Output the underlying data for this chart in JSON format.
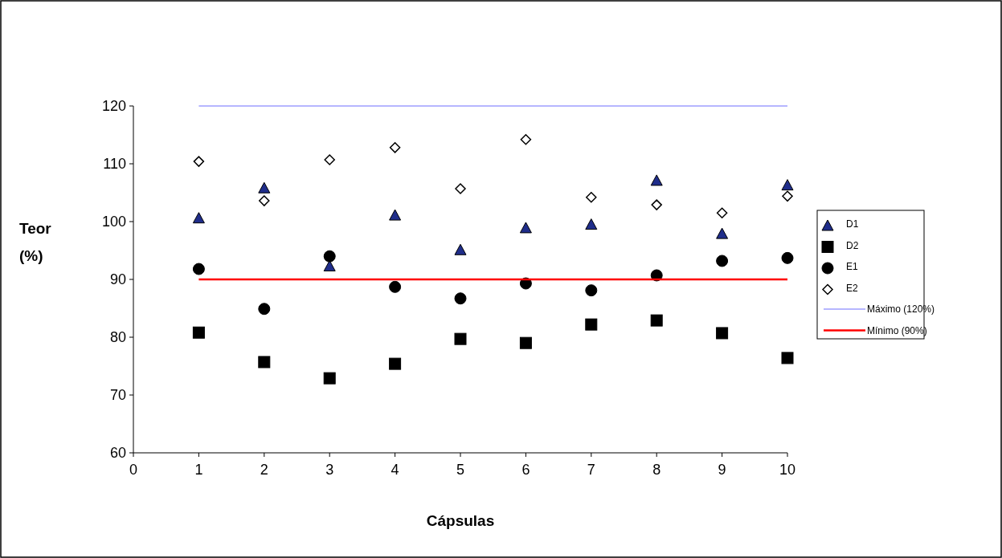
{
  "chart_data": {
    "type": "scatter",
    "xlabel": "Cápsulas",
    "ylabel": "Teor (%)",
    "xlim": [
      0,
      10
    ],
    "xticks": [
      0,
      1,
      2,
      3,
      4,
      5,
      6,
      7,
      8,
      9,
      10
    ],
    "ylim": [
      60,
      120
    ],
    "yticks": [
      60,
      70,
      80,
      90,
      100,
      110,
      120
    ],
    "x": [
      1,
      2,
      3,
      4,
      5,
      6,
      7,
      8,
      9,
      10
    ],
    "grid": false,
    "legend": "right",
    "series": [
      {
        "name": "D1",
        "color": "#1f2d8a",
        "marker": "triangle",
        "values": [
          100.6,
          105.8,
          92.3,
          101.1,
          95.1,
          98.9,
          99.5,
          107.1,
          97.9,
          106.3
        ]
      },
      {
        "name": "D2",
        "color": "#000000",
        "marker": "square",
        "values": [
          80.8,
          75.7,
          72.9,
          75.4,
          79.7,
          79.0,
          82.2,
          82.9,
          80.7,
          76.4
        ]
      },
      {
        "name": "E1",
        "color": "#000000",
        "marker": "circle",
        "values": [
          91.8,
          84.9,
          94.0,
          88.7,
          86.7,
          89.3,
          88.1,
          90.7,
          93.2,
          93.7
        ]
      },
      {
        "name": "E2",
        "color": "#ffffff",
        "marker": "diamond",
        "values": [
          110.4,
          103.6,
          110.7,
          112.8,
          105.7,
          114.2,
          104.2,
          102.9,
          101.5,
          104.4
        ]
      }
    ],
    "ref_lines": [
      {
        "axis": "y",
        "value": 120,
        "label": "Máximo (120%)",
        "color": "#6f6fff"
      },
      {
        "axis": "y",
        "value": 90,
        "label": "Mínimo (90%)",
        "color": "#ff0000"
      }
    ]
  }
}
